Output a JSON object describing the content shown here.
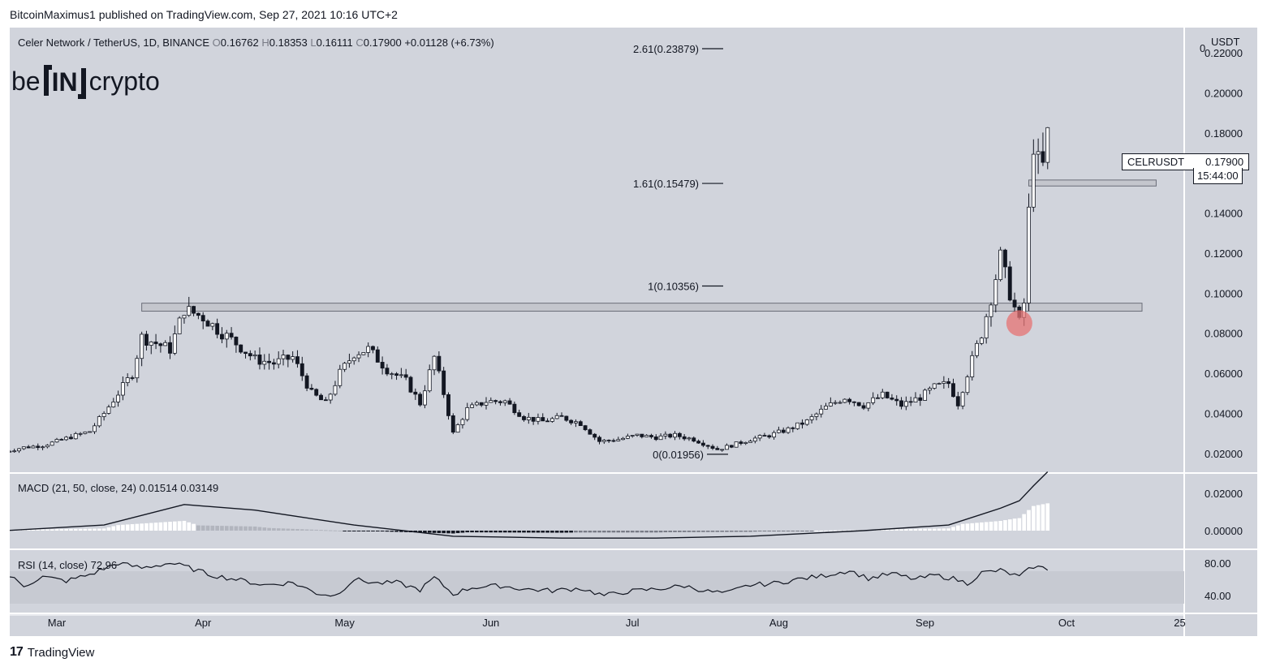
{
  "header": {
    "publisher": "BitcoinMaximus1 published on TradingView.com, Sep 27, 2021 10:16 UTC+2"
  },
  "symbol": {
    "name": "Celer Network / TetherUS, 1D, BINANCE",
    "o_label": "O",
    "o": "0.16762",
    "h_label": "H",
    "h": "0.18353",
    "l_label": "L",
    "l": "0.16111",
    "c_label": "C",
    "c": "0.17900",
    "change": "+0.01128 (+6.73%)"
  },
  "brand": {
    "left": "be",
    "mid": "IN",
    "right": "crypto"
  },
  "price_axis": {
    "currency": "USDT",
    "top_tick": "0"
  },
  "price_tag": {
    "ticker": "CELRUSDT",
    "price": "0.17900",
    "countdown": "15:44:00"
  },
  "macd": {
    "label": "MACD (21, 50, close, 24)",
    "v1": "0.01514",
    "v2": "0.03149"
  },
  "rsi": {
    "label": "RSI (14, close)",
    "value": "72.96"
  },
  "footer": {
    "brand": "TradingView"
  },
  "colors": {
    "background": "#d1d4dc",
    "highlight": "#e57373",
    "text": "#131722"
  },
  "chart_data": {
    "type": "candlestick",
    "price_ticks": [
      "0.22000",
      "0.20000",
      "0.18000",
      "0.16000",
      "0.14000",
      "0.12000",
      "0.10000",
      "0.08000",
      "0.06000",
      "0.04000",
      "0.02000"
    ],
    "price_range": [
      0.0106,
      0.2326
    ],
    "x_labels": [
      "Mar",
      "Apr",
      "May",
      "Jun",
      "Jul",
      "Aug",
      "Sep",
      "Oct",
      "25"
    ],
    "fib_levels": [
      {
        "label": "2.61(0.23879)",
        "value": 0.23879
      },
      {
        "label": "1.61(0.15479)",
        "value": 0.15479
      },
      {
        "label": "1(0.10356)",
        "value": 0.10356
      },
      {
        "label": "0(0.01956)",
        "value": 0.01956
      }
    ],
    "horizontal_zones": [
      {
        "low": 0.091,
        "high": 0.095,
        "from_date": "Mar 19",
        "to_date": "Oct 17"
      },
      {
        "low": 0.1535,
        "high": 0.1565,
        "from_date": "Sep 23",
        "to_date": "Oct 20"
      }
    ],
    "highlight": {
      "date": "Sep 21",
      "price": 0.085
    },
    "close_points": [
      [
        "Feb 18",
        0.021
      ],
      [
        "Feb 22",
        0.023
      ],
      [
        "Feb 26",
        0.024
      ],
      [
        "Mar 1",
        0.026
      ],
      [
        "Mar 5",
        0.029
      ],
      [
        "Mar 8",
        0.031
      ],
      [
        "Mar 11",
        0.04
      ],
      [
        "Mar 14",
        0.05
      ],
      [
        "Mar 17",
        0.06
      ],
      [
        "Mar 19",
        0.078
      ],
      [
        "Mar 22",
        0.075
      ],
      [
        "Mar 25",
        0.072
      ],
      [
        "Mar 28",
        0.092
      ],
      [
        "Apr 1",
        0.088
      ],
      [
        "Apr 4",
        0.082
      ],
      [
        "Apr 8",
        0.075
      ],
      [
        "Apr 12",
        0.067
      ],
      [
        "Apr 16",
        0.065
      ],
      [
        "Apr 20",
        0.068
      ],
      [
        "Apr 24",
        0.05
      ],
      [
        "Apr 27",
        0.045
      ],
      [
        "Apr 30",
        0.06
      ],
      [
        "May 3",
        0.07
      ],
      [
        "May 6",
        0.072
      ],
      [
        "May 10",
        0.062
      ],
      [
        "May 14",
        0.056
      ],
      [
        "May 17",
        0.045
      ],
      [
        "May 20",
        0.068
      ],
      [
        "May 22",
        0.05
      ],
      [
        "May 24",
        0.03
      ],
      [
        "May 27",
        0.042
      ],
      [
        "May 31",
        0.046
      ],
      [
        "Jun 4",
        0.046
      ],
      [
        "Jun 8",
        0.038
      ],
      [
        "Jun 12",
        0.036
      ],
      [
        "Jun 16",
        0.038
      ],
      [
        "Jun 20",
        0.035
      ],
      [
        "Jun 24",
        0.026
      ],
      [
        "Jun 28",
        0.027
      ],
      [
        "Jul 2",
        0.029
      ],
      [
        "Jul 6",
        0.028
      ],
      [
        "Jul 10",
        0.029
      ],
      [
        "Jul 14",
        0.027
      ],
      [
        "Jul 19",
        0.022
      ],
      [
        "Jul 22",
        0.024
      ],
      [
        "Jul 26",
        0.027
      ],
      [
        "Jul 30",
        0.029
      ],
      [
        "Aug 3",
        0.032
      ],
      [
        "Aug 7",
        0.036
      ],
      [
        "Aug 11",
        0.043
      ],
      [
        "Aug 15",
        0.048
      ],
      [
        "Aug 19",
        0.044
      ],
      [
        "Aug 23",
        0.049
      ],
      [
        "Aug 27",
        0.044
      ],
      [
        "Aug 31",
        0.048
      ],
      [
        "Sep 3",
        0.053
      ],
      [
        "Sep 6",
        0.055
      ],
      [
        "Sep 8",
        0.045
      ],
      [
        "Sep 10",
        0.06
      ],
      [
        "Sep 13",
        0.08
      ],
      [
        "Sep 15",
        0.098
      ],
      [
        "Sep 17",
        0.118
      ],
      [
        "Sep 19",
        0.1
      ],
      [
        "Sep 21",
        0.085
      ],
      [
        "Sep 22",
        0.095
      ],
      [
        "Sep 23",
        0.14
      ],
      [
        "Sep 24",
        0.175
      ],
      [
        "Sep 25",
        0.165
      ],
      [
        "Sep 26",
        0.163
      ],
      [
        "Sep 27",
        0.179
      ]
    ],
    "macd_points": [
      [
        "Feb 18",
        0.0
      ],
      [
        "Mar 11",
        0.003
      ],
      [
        "Mar 28",
        0.014
      ],
      [
        "Apr 12",
        0.011
      ],
      [
        "May 3",
        0.003
      ],
      [
        "May 24",
        -0.003
      ],
      [
        "Jun 16",
        -0.004
      ],
      [
        "Jul 6",
        -0.004
      ],
      [
        "Jul 26",
        -0.003
      ],
      [
        "Aug 19",
        0.0
      ],
      [
        "Sep 6",
        0.003
      ],
      [
        "Sep 17",
        0.012
      ],
      [
        "Sep 21",
        0.016
      ],
      [
        "Sep 24",
        0.024
      ],
      [
        "Sep 27",
        0.0315
      ]
    ],
    "rsi_points": [
      [
        "Feb 18",
        68
      ],
      [
        "Feb 22",
        52
      ],
      [
        "Feb 26",
        63
      ],
      [
        "Mar 3",
        58
      ],
      [
        "Mar 8",
        66
      ],
      [
        "Mar 14",
        80
      ],
      [
        "Mar 19",
        74
      ],
      [
        "Mar 25",
        80
      ],
      [
        "Mar 28",
        76
      ],
      [
        "Apr 3",
        65
      ],
      [
        "Apr 8",
        60
      ],
      [
        "Apr 14",
        53
      ],
      [
        "Apr 20",
        56
      ],
      [
        "Apr 25",
        43
      ],
      [
        "Apr 29",
        40
      ],
      [
        "May 3",
        60
      ],
      [
        "May 8",
        55
      ],
      [
        "May 12",
        56
      ],
      [
        "May 17",
        47
      ],
      [
        "May 20",
        62
      ],
      [
        "May 24",
        42
      ],
      [
        "May 28",
        50
      ],
      [
        "Jun 3",
        52
      ],
      [
        "Jun 8",
        48
      ],
      [
        "Jun 14",
        46
      ],
      [
        "Jun 20",
        49
      ],
      [
        "Jun 25",
        40
      ],
      [
        "Jun 30",
        45
      ],
      [
        "Jul 6",
        48
      ],
      [
        "Jul 12",
        52
      ],
      [
        "Jul 17",
        45
      ],
      [
        "Jul 21",
        43
      ],
      [
        "Jul 26",
        53
      ],
      [
        "Jul 31",
        55
      ],
      [
        "Aug 5",
        60
      ],
      [
        "Aug 10",
        64
      ],
      [
        "Aug 16",
        71
      ],
      [
        "Aug 20",
        61
      ],
      [
        "Aug 25",
        67
      ],
      [
        "Aug 30",
        60
      ],
      [
        "Sep 3",
        65
      ],
      [
        "Sep 7",
        61
      ],
      [
        "Sep 10",
        55
      ],
      [
        "Sep 13",
        68
      ],
      [
        "Sep 17",
        71
      ],
      [
        "Sep 21",
        63
      ],
      [
        "Sep 24",
        76
      ],
      [
        "Sep 27",
        72.96
      ]
    ],
    "macd_ticks": [
      "0.02000",
      "0.00000"
    ],
    "rsi_ticks": [
      "80.00",
      "40.00"
    ]
  }
}
